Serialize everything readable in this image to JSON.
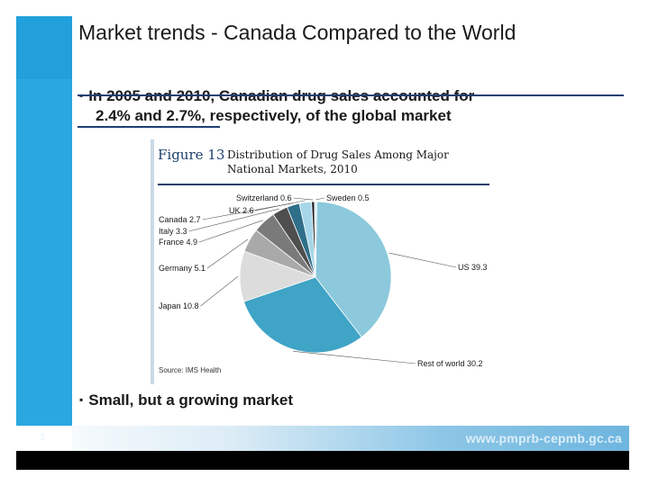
{
  "slide": {
    "title": "Market trends - Canada Compared to the World",
    "bullet1_line1": "In 2005 and 2010, Canadian drug sales accounted for",
    "bullet1_line2": "2.4% and 2.7%, respectively, of the global market",
    "bullet2": "Small, but a growing market",
    "bullet_mark": "▪",
    "page_number": "3",
    "url": "www.pmprb-cepmb.gc.ca"
  },
  "figure": {
    "number": "Figure 13",
    "title": "Distribution of Drug Sales Among Major National Markets, 2010",
    "source": "Source: IMS Health"
  },
  "chart_data": {
    "type": "pie",
    "title": "Distribution of Drug Sales Among Major National Markets, 2010",
    "slices": [
      {
        "label": "US",
        "value": 39.3,
        "text": "US 39.3",
        "color": "#8cc9dc"
      },
      {
        "label": "Rest of world",
        "value": 30.2,
        "text": "Rest of world 30.2",
        "color": "#3fa4c6"
      },
      {
        "label": "Japan",
        "value": 10.8,
        "text": "Japan 10.8",
        "color": "#dcdcdc"
      },
      {
        "label": "Germany",
        "value": 5.1,
        "text": "Germany 5.1",
        "color": "#a9a9a9"
      },
      {
        "label": "France",
        "value": 4.9,
        "text": "France 4.9",
        "color": "#7a7a7a"
      },
      {
        "label": "Italy",
        "value": 3.3,
        "text": "Italy 3.3",
        "color": "#4e4e4e"
      },
      {
        "label": "Canada",
        "value": 2.7,
        "text": "Canada 2.7",
        "color": "#2f6f8a"
      },
      {
        "label": "UK",
        "value": 2.6,
        "text": "UK 2.6",
        "color": "#a6d6e8"
      },
      {
        "label": "Switzerland",
        "value": 0.6,
        "text": "Switzerland 0.6",
        "color": "#1d1d1d"
      },
      {
        "label": "Sweden",
        "value": 0.5,
        "text": "Sweden 0.5",
        "color": "#d7edf5"
      }
    ]
  }
}
